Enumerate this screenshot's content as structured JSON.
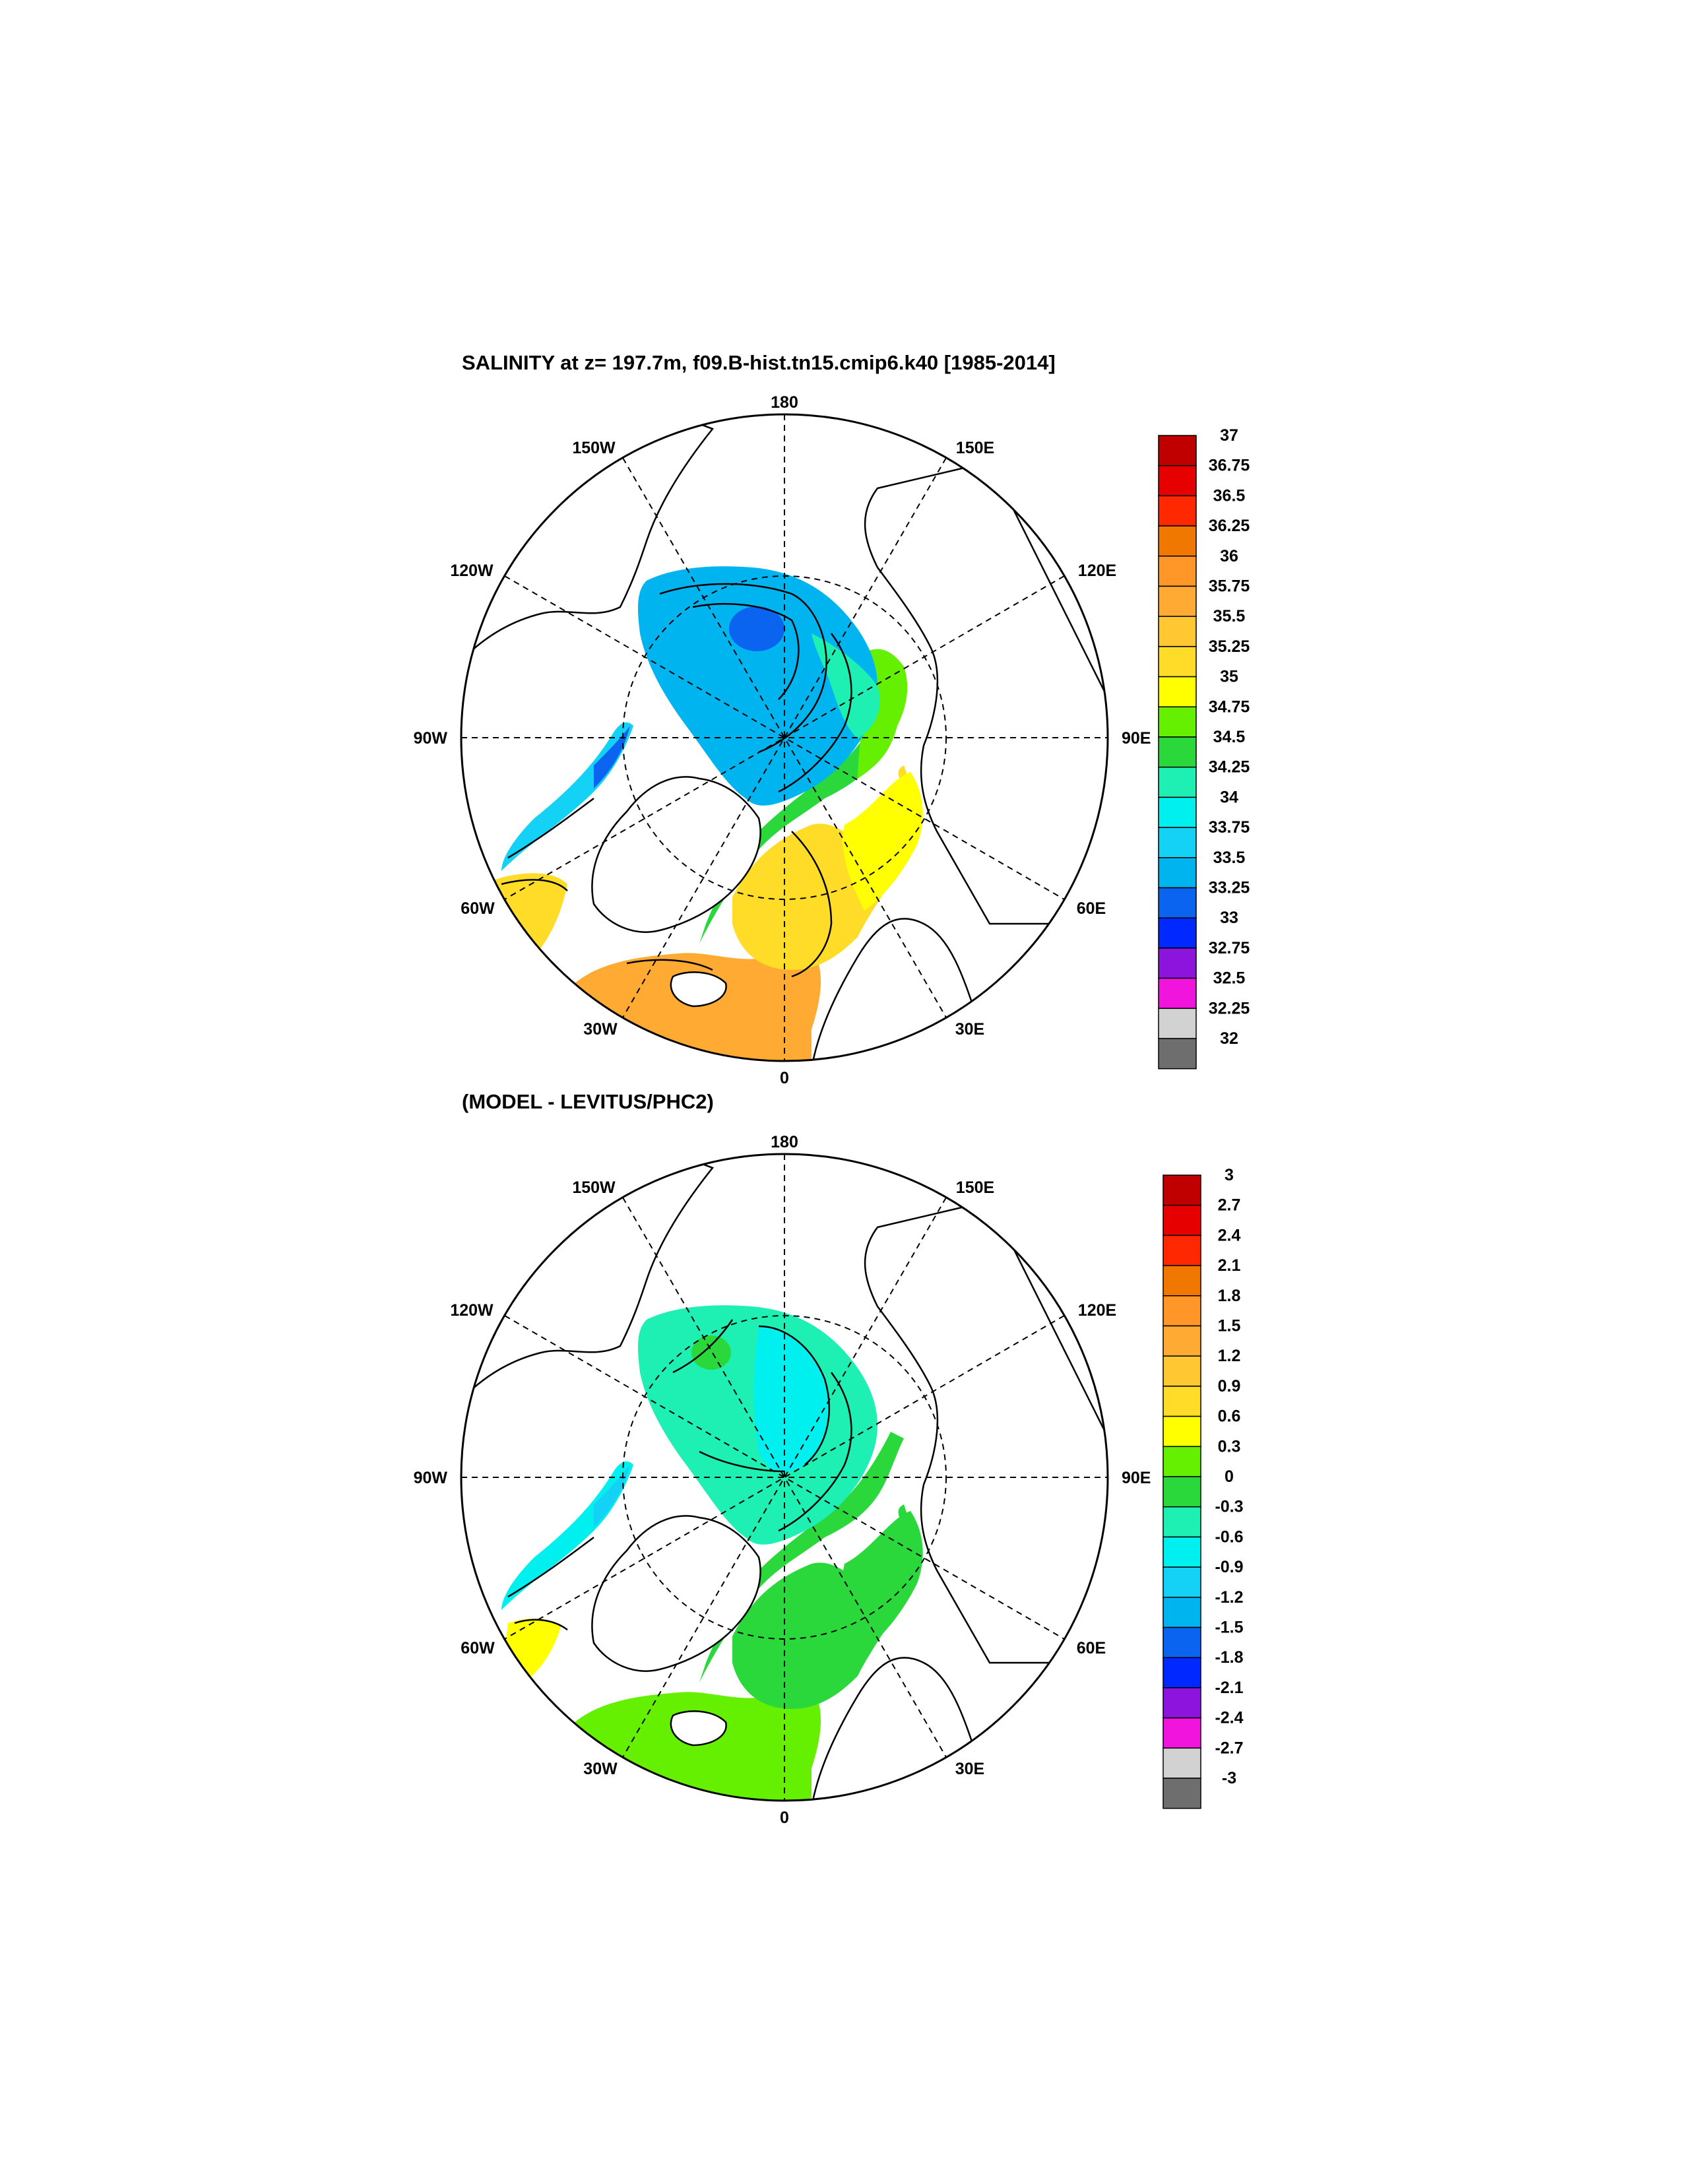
{
  "panel1": {
    "title": "SALINITY at z= 197.7m, f09.B-hist.tn15.cmip6.k40 [1985-2014]",
    "lon_labels": {
      "top": "180",
      "tl": "150W",
      "tr": "150E",
      "ul": "120W",
      "ur": "120E",
      "l": "90W",
      "r": "90E",
      "ll": "60W",
      "lr": "60E",
      "bl": "30W",
      "br": "30E",
      "bottom": "0"
    },
    "colorbar": {
      "labels": [
        "37",
        "36.75",
        "36.5",
        "36.25",
        "36",
        "35.75",
        "35.5",
        "35.25",
        "35",
        "34.75",
        "34.5",
        "34.25",
        "34",
        "33.75",
        "33.5",
        "33.25",
        "33",
        "32.75",
        "32.5",
        "32.25",
        "32"
      ],
      "colors": [
        "#c00000",
        "#e60000",
        "#ff2800",
        "#f07800",
        "#ff9628",
        "#ffaa32",
        "#ffc832",
        "#ffdc28",
        "#ffff00",
        "#64f000",
        "#2ad83c",
        "#1ef0b4",
        "#00f0f0",
        "#14d2f5",
        "#00b4f0",
        "#0a64f0",
        "#0028ff",
        "#8c14dc",
        "#f014dc",
        "#d2d2d2",
        "#6e6e6e"
      ]
    }
  },
  "panel2": {
    "title": "(MODEL - LEVITUS/PHC2)",
    "lon_labels": {
      "top": "180",
      "tl": "150W",
      "tr": "150E",
      "ul": "120W",
      "ur": "120E",
      "l": "90W",
      "r": "90E",
      "ll": "60W",
      "lr": "60E",
      "bl": "30W",
      "br": "30E",
      "bottom": "0"
    },
    "colorbar": {
      "labels": [
        "3",
        "2.7",
        "2.4",
        "2.1",
        "1.8",
        "1.5",
        "1.2",
        "0.9",
        "0.6",
        "0.3",
        "0",
        "-0.3",
        "-0.6",
        "-0.9",
        "-1.2",
        "-1.5",
        "-1.8",
        "-2.1",
        "-2.4",
        "-2.7",
        "-3"
      ],
      "colors": [
        "#c00000",
        "#e60000",
        "#ff2800",
        "#f07800",
        "#ff9628",
        "#ffaa32",
        "#ffc832",
        "#ffdc28",
        "#ffff00",
        "#64f000",
        "#2ad83c",
        "#1ef0b4",
        "#00f0f0",
        "#14d2f5",
        "#00b4f0",
        "#0a64f0",
        "#0028ff",
        "#8c14dc",
        "#f014dc",
        "#d2d2d2",
        "#6e6e6e"
      ]
    }
  }
}
